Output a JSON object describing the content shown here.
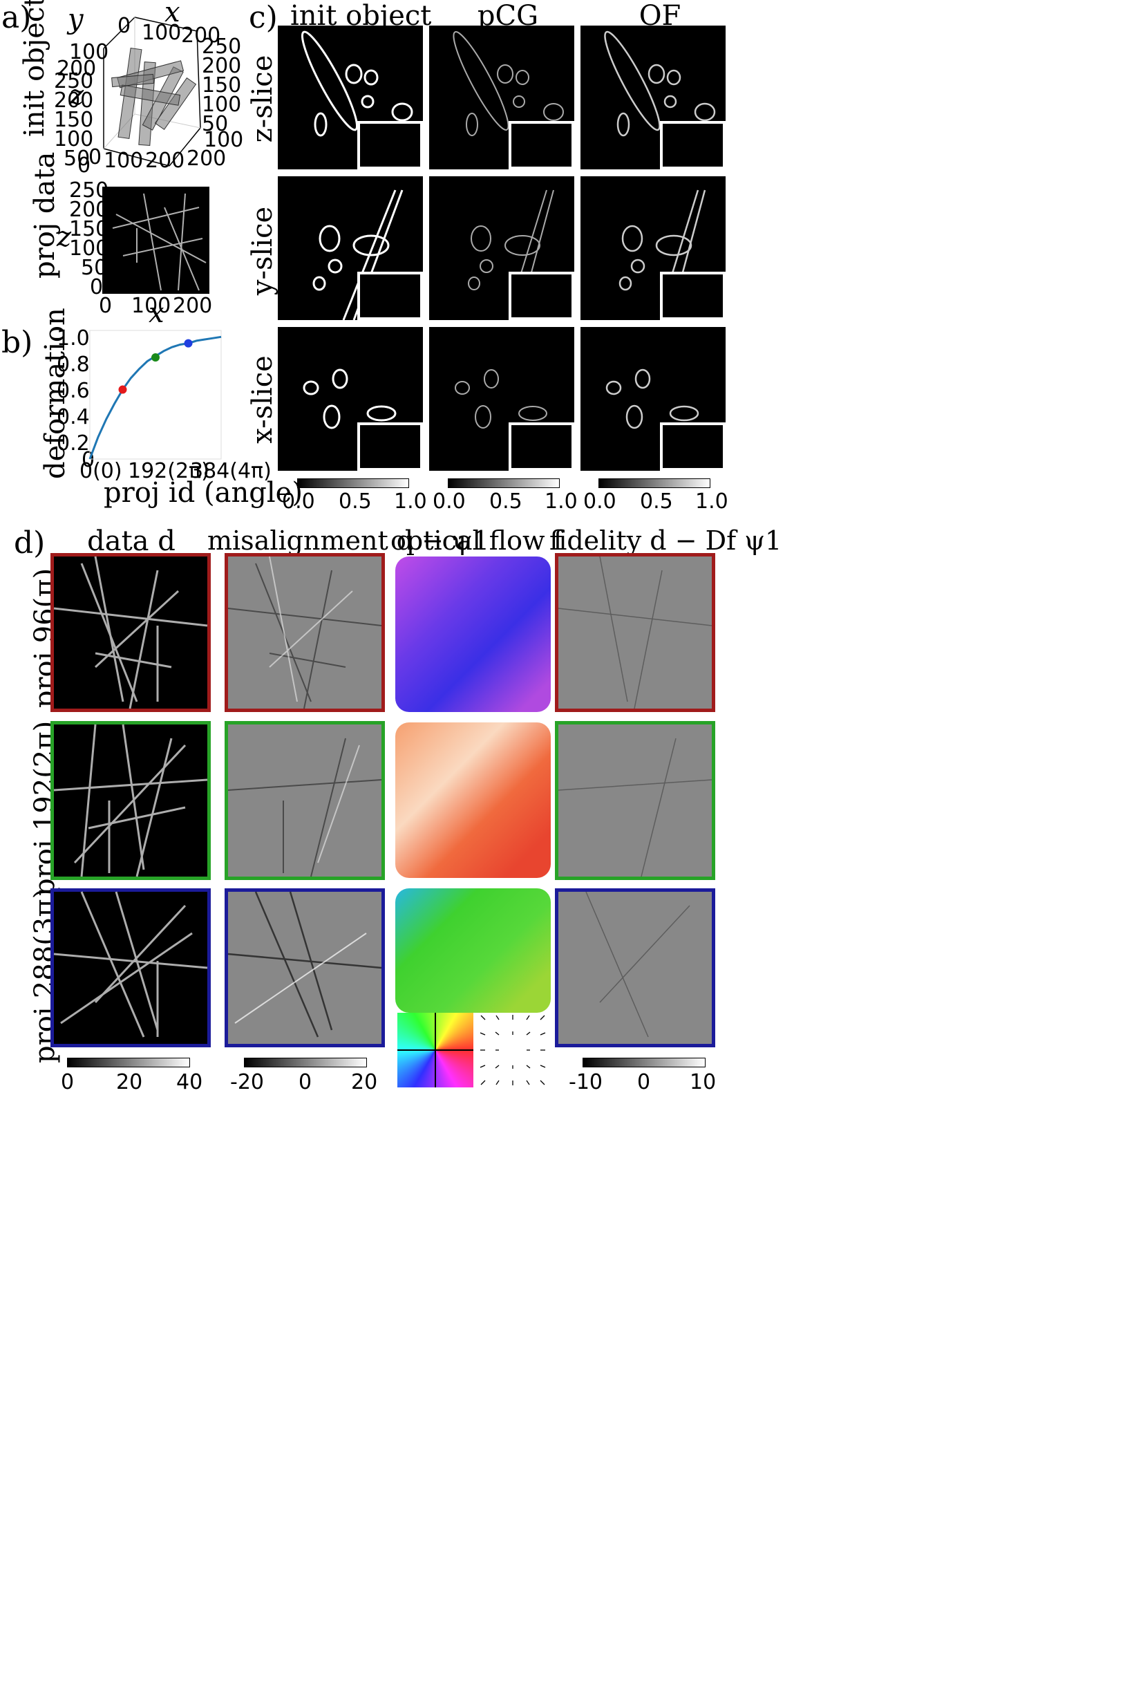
{
  "panels": {
    "a": "a)",
    "b": "b)",
    "c": "c)",
    "d": "d)"
  },
  "panel_a": {
    "row1_label": "init object",
    "row2_label": "proj data",
    "axis3d": {
      "x": "x",
      "y": "y",
      "z": "z"
    },
    "ticks_y": [
      "100",
      "200"
    ],
    "ticks_x_top": [
      "0",
      "100",
      "200"
    ],
    "ticks_right": [
      "250",
      "200",
      "150",
      "100",
      "50"
    ],
    "ticks_z": [
      "250",
      "200",
      "150",
      "100",
      "50",
      "0"
    ],
    "ticks_bottom": [
      "0",
      "100",
      "200"
    ],
    "ticks_right2": [
      "100",
      "200"
    ],
    "proj_xlabel": "x",
    "proj_ylabel": "z",
    "proj_yticks": [
      "250",
      "200",
      "150",
      "100",
      "50",
      "0"
    ],
    "proj_xticks": [
      "0",
      "100",
      "200"
    ]
  },
  "panel_b": {
    "ylabel": "deformation",
    "xlabel": "proj id (angle)",
    "yticks": [
      "1.0",
      "0.8",
      "0.6",
      "0.4",
      "0.2",
      "0"
    ],
    "xticks": [
      "0(0)",
      "192(2π)",
      "384(4π)"
    ]
  },
  "panel_c": {
    "col_titles": [
      "init object",
      "pCG",
      "OF"
    ],
    "row_labels": [
      "z-slice",
      "y-slice",
      "x-slice"
    ],
    "colorbar_ticks": [
      "0.0",
      "0.5",
      "1.0"
    ]
  },
  "panel_d": {
    "col_titles": [
      "data d",
      "misalignment d − ψ1",
      "optical flow f",
      "fidelity d − Df ψ1"
    ],
    "row_labels": [
      "proj 96(π)",
      "proj 192(2π)",
      "proj 288(3π)"
    ],
    "row_colors": [
      "#a01b1b",
      "#27a327",
      "#1b1b9a"
    ],
    "cbar_data_ticks": [
      "0",
      "20",
      "40"
    ],
    "cbar_misalign_ticks": [
      "-20",
      "0",
      "20"
    ],
    "cbar_fidelity_ticks": [
      "-10",
      "0",
      "10"
    ]
  },
  "chart_data": {
    "type": "line",
    "title": "",
    "xlabel": "proj id (angle)",
    "ylabel": "deformation",
    "xlim": [
      0,
      384
    ],
    "ylim": [
      0,
      1.0
    ],
    "x_tick_labels": [
      "0(0)",
      "192(2π)",
      "384(4π)"
    ],
    "y_tick_labels": [
      "0",
      "0.2",
      "0.4",
      "0.6",
      "0.8",
      "1.0"
    ],
    "curve": {
      "color": "#1f77b4",
      "x": [
        0,
        24,
        48,
        72,
        96,
        120,
        144,
        168,
        192,
        216,
        240,
        264,
        288,
        312,
        336,
        360,
        384
      ],
      "y": [
        0,
        0.17,
        0.31,
        0.43,
        0.54,
        0.63,
        0.7,
        0.76,
        0.8,
        0.84,
        0.87,
        0.89,
        0.9,
        0.92,
        0.93,
        0.94,
        0.95
      ]
    },
    "markers": [
      {
        "x": 96,
        "y": 0.54,
        "color": "#e41a1c"
      },
      {
        "x": 192,
        "y": 0.79,
        "color": "#1a8a1a"
      },
      {
        "x": 288,
        "y": 0.9,
        "color": "#1f3fe0"
      }
    ]
  }
}
